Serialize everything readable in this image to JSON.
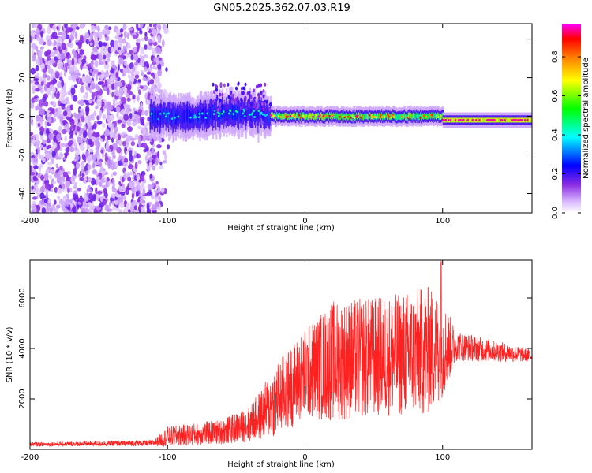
{
  "title": "GN05.2025.362.07.03.R19",
  "chart_data": [
    {
      "type": "heatmap",
      "xlabel": "Height of straight line (km)",
      "ylabel": "Frequency (Hz)",
      "xlim": [
        -200,
        165
      ],
      "ylim": [
        -50,
        48
      ],
      "xticks": [
        -200,
        -100,
        0,
        100
      ],
      "yticks": [
        40,
        20,
        0,
        -20,
        -40
      ],
      "colorbar": {
        "label": "Normalized spectral amplitude",
        "range": [
          0,
          0.97
        ],
        "ticks": [
          0.0,
          0.2,
          0.4,
          0.6,
          0.8
        ],
        "tick_labels": [
          "0.0",
          "0.2",
          "0.4",
          "0.6",
          "0.8"
        ],
        "colormap": [
          "#ffffff",
          "#d8b8ff",
          "#8a2be2",
          "#0000ff",
          "#00ffff",
          "#00ff00",
          "#ffff00",
          "#ff7f00",
          "#ff0000",
          "#ff00ff"
        ]
      },
      "regions": [
        {
          "x_range": [
            -200,
            -110
          ],
          "description": "broadband noise across all frequencies",
          "amplitude": 0.1
        },
        {
          "x_range": [
            -110,
            -25
          ],
          "center_freq": 0,
          "amplitude": 0.35
        },
        {
          "x_range": [
            -25,
            100
          ],
          "center_freq": 0,
          "amplitude": 0.8
        },
        {
          "x_range": [
            100,
            165
          ],
          "center_freq": -2,
          "amplitude": 0.95
        }
      ]
    },
    {
      "type": "line",
      "xlabel": "Height of straight line (km)",
      "ylabel": "SNR (10 * v/v)",
      "xlim": [
        -200,
        165
      ],
      "ylim": [
        0,
        7500
      ],
      "xticks": [
        -200,
        -100,
        0,
        100
      ],
      "yticks": [
        2000,
        4000,
        6000
      ],
      "color": "#ff2020",
      "envelope": [
        {
          "x": -200,
          "mean": 200,
          "spread": 80
        },
        {
          "x": -110,
          "mean": 250,
          "spread": 120
        },
        {
          "x": -100,
          "mean": 500,
          "spread": 400
        },
        {
          "x": -60,
          "mean": 700,
          "spread": 500
        },
        {
          "x": -40,
          "mean": 1000,
          "spread": 700
        },
        {
          "x": -20,
          "mean": 2000,
          "spread": 1500
        },
        {
          "x": 0,
          "mean": 3000,
          "spread": 1800
        },
        {
          "x": 20,
          "mean": 3500,
          "spread": 2400
        },
        {
          "x": 60,
          "mean": 3700,
          "spread": 2400
        },
        {
          "x": 90,
          "mean": 3900,
          "spread": 2600
        },
        {
          "x": 100,
          "mean": 4000,
          "spread": 2000
        },
        {
          "x": 110,
          "mean": 4100,
          "spread": 600
        },
        {
          "x": 165,
          "mean": 3700,
          "spread": 250
        }
      ],
      "peak": {
        "x": 99,
        "y": 7450
      }
    }
  ]
}
